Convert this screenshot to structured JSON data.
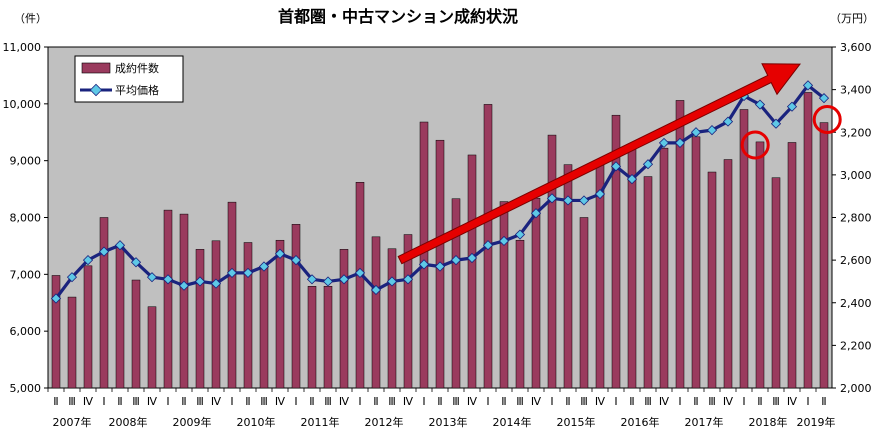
{
  "chart_data": {
    "type": "bar+line",
    "title": "首都圏・中古マンション成約状況",
    "left_unit": "（件）",
    "right_unit": "（万円）",
    "left_ylim": [
      5000,
      11000
    ],
    "right_ylim": [
      2000,
      3600
    ],
    "left_ticks": [
      "5,000",
      "6,000",
      "7,000",
      "8,000",
      "9,000",
      "10,000",
      "11,000"
    ],
    "right_ticks": [
      "2,000",
      "2,200",
      "2,400",
      "2,600",
      "2,800",
      "3,000",
      "3,200",
      "3,400",
      "3,600"
    ],
    "quarters": [
      "Ⅱ",
      "Ⅲ",
      "Ⅳ",
      "Ⅰ",
      "Ⅱ",
      "Ⅲ",
      "Ⅳ",
      "Ⅰ",
      "Ⅱ",
      "Ⅲ",
      "Ⅳ",
      "Ⅰ",
      "Ⅱ",
      "Ⅲ",
      "Ⅳ",
      "Ⅰ",
      "Ⅱ",
      "Ⅲ",
      "Ⅳ",
      "Ⅰ",
      "Ⅱ",
      "Ⅲ",
      "Ⅳ",
      "Ⅰ",
      "Ⅱ",
      "Ⅲ",
      "Ⅳ",
      "Ⅰ",
      "Ⅱ",
      "Ⅲ",
      "Ⅳ",
      "Ⅰ",
      "Ⅱ",
      "Ⅲ",
      "Ⅳ",
      "Ⅰ",
      "Ⅱ",
      "Ⅲ",
      "Ⅳ",
      "Ⅰ",
      "Ⅱ",
      "Ⅲ",
      "Ⅳ",
      "Ⅰ",
      "Ⅱ",
      "Ⅲ",
      "Ⅳ",
      "Ⅰ",
      "Ⅱ"
    ],
    "years": [
      {
        "label": "2007年",
        "start": 0,
        "count": 3
      },
      {
        "label": "2008年",
        "start": 3,
        "count": 4
      },
      {
        "label": "2009年",
        "start": 7,
        "count": 4
      },
      {
        "label": "2010年",
        "start": 11,
        "count": 4
      },
      {
        "label": "2011年",
        "start": 15,
        "count": 4
      },
      {
        "label": "2012年",
        "start": 19,
        "count": 4
      },
      {
        "label": "2013年",
        "start": 23,
        "count": 4
      },
      {
        "label": "2014年",
        "start": 27,
        "count": 4
      },
      {
        "label": "2015年",
        "start": 31,
        "count": 4
      },
      {
        "label": "2016年",
        "start": 35,
        "count": 4
      },
      {
        "label": "2017年",
        "start": 39,
        "count": 4
      },
      {
        "label": "2018年",
        "start": 43,
        "count": 4
      },
      {
        "label": "2019年",
        "start": 47,
        "count": 2
      }
    ],
    "series": [
      {
        "name": "成約件数",
        "axis": "left",
        "kind": "bar",
        "color": "#9a3b5e",
        "values": [
          6980,
          6600,
          7150,
          8000,
          7480,
          6900,
          6430,
          8130,
          8060,
          7440,
          7590,
          8270,
          7560,
          7130,
          7600,
          7880,
          6790,
          6790,
          7440,
          8620,
          7660,
          7450,
          7700,
          9680,
          9360,
          8330,
          9100,
          9990,
          8280,
          7600,
          8340,
          9450,
          8930,
          8000,
          8920,
          9800,
          9270,
          8720,
          9220,
          10060,
          9420,
          8800,
          9020,
          9900,
          9330,
          8700,
          9320,
          10200,
          9670
        ]
      },
      {
        "name": "平均価格",
        "axis": "right",
        "kind": "line",
        "color": "#1a237e",
        "marker_color": "#5ec8e6",
        "values": [
          2420,
          2520,
          2600,
          2640,
          2670,
          2590,
          2520,
          2510,
          2480,
          2500,
          2490,
          2540,
          2540,
          2570,
          2630,
          2600,
          2510,
          2500,
          2510,
          2540,
          2460,
          2500,
          2510,
          2580,
          2570,
          2600,
          2610,
          2670,
          2690,
          2720,
          2820,
          2890,
          2880,
          2880,
          2910,
          3040,
          2980,
          3050,
          3150,
          3150,
          3200,
          3210,
          3250,
          3370,
          3330,
          3240,
          3320,
          3420,
          3360
        ]
      }
    ],
    "legend_position": "top-left",
    "grid": false,
    "plot_background": "#c0c0c0",
    "annotations": [
      {
        "type": "trend-arrow",
        "color": "#e60000",
        "from": {
          "index": 21.5,
          "right_value": 2600
        },
        "to": {
          "index": 46.5,
          "right_value": 3520
        }
      },
      {
        "type": "circle",
        "color": "#e60000",
        "at": {
          "index": 43.7,
          "right_value": 3140
        }
      },
      {
        "type": "circle",
        "color": "#e60000",
        "at": {
          "index": 48.2,
          "right_value": 3260
        }
      }
    ]
  }
}
